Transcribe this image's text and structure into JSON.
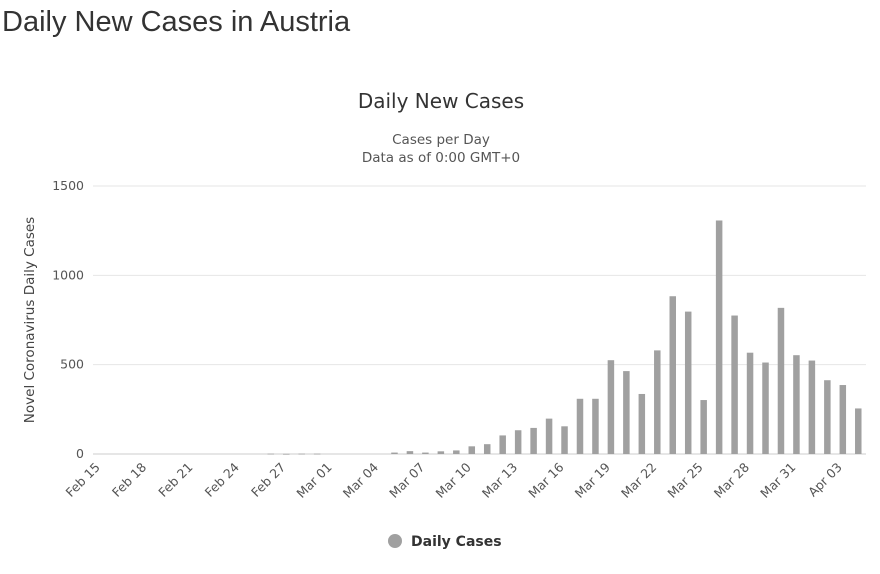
{
  "page": {
    "heading": "Daily New Cases in Austria"
  },
  "chart_data": {
    "type": "bar",
    "title": "Daily New Cases",
    "subtitle_lines": [
      "Cases per Day",
      "Data as of 0:00 GMT+0"
    ],
    "ylabel": "Novel Coronavirus Daily Cases",
    "xlabel": "",
    "ylim": [
      0,
      1500
    ],
    "yticks": [
      0,
      500,
      1000,
      1500
    ],
    "grid": true,
    "legend_position": "bottom-center",
    "bar_color": "#a0a0a0",
    "categories": [
      "Feb 15",
      "Feb 16",
      "Feb 17",
      "Feb 18",
      "Feb 19",
      "Feb 20",
      "Feb 21",
      "Feb 22",
      "Feb 23",
      "Feb 24",
      "Feb 25",
      "Feb 26",
      "Feb 27",
      "Feb 28",
      "Feb 29",
      "Mar 01",
      "Mar 02",
      "Mar 03",
      "Mar 04",
      "Mar 05",
      "Mar 06",
      "Mar 07",
      "Mar 08",
      "Mar 09",
      "Mar 10",
      "Mar 11",
      "Mar 12",
      "Mar 13",
      "Mar 14",
      "Mar 15",
      "Mar 16",
      "Mar 17",
      "Mar 18",
      "Mar 19",
      "Mar 20",
      "Mar 21",
      "Mar 22",
      "Mar 23",
      "Mar 24",
      "Mar 25",
      "Mar 26",
      "Mar 27",
      "Mar 28",
      "Mar 29",
      "Mar 30",
      "Mar 31",
      "Apr 01",
      "Apr 02",
      "Apr 03",
      "Apr 04"
    ],
    "tick_labels": [
      "Feb 15",
      "Feb 18",
      "Feb 21",
      "Feb 24",
      "Feb 27",
      "Mar 01",
      "Mar 04",
      "Mar 07",
      "Mar 10",
      "Mar 13",
      "Mar 16",
      "Mar 19",
      "Mar 22",
      "Mar 25",
      "Mar 28",
      "Mar 31",
      "Apr 03"
    ],
    "series": [
      {
        "name": "Daily Cases",
        "values": [
          0,
          0,
          0,
          0,
          0,
          0,
          0,
          0,
          0,
          0,
          0,
          2,
          1,
          2,
          2,
          0,
          0,
          0,
          0,
          8,
          16,
          8,
          15,
          20,
          43,
          55,
          104,
          133,
          146,
          198,
          155,
          309,
          309,
          525,
          464,
          336,
          580,
          883,
          797,
          302,
          1307,
          775,
          567,
          512,
          818,
          553,
          523,
          413,
          386,
          255
        ]
      }
    ]
  }
}
